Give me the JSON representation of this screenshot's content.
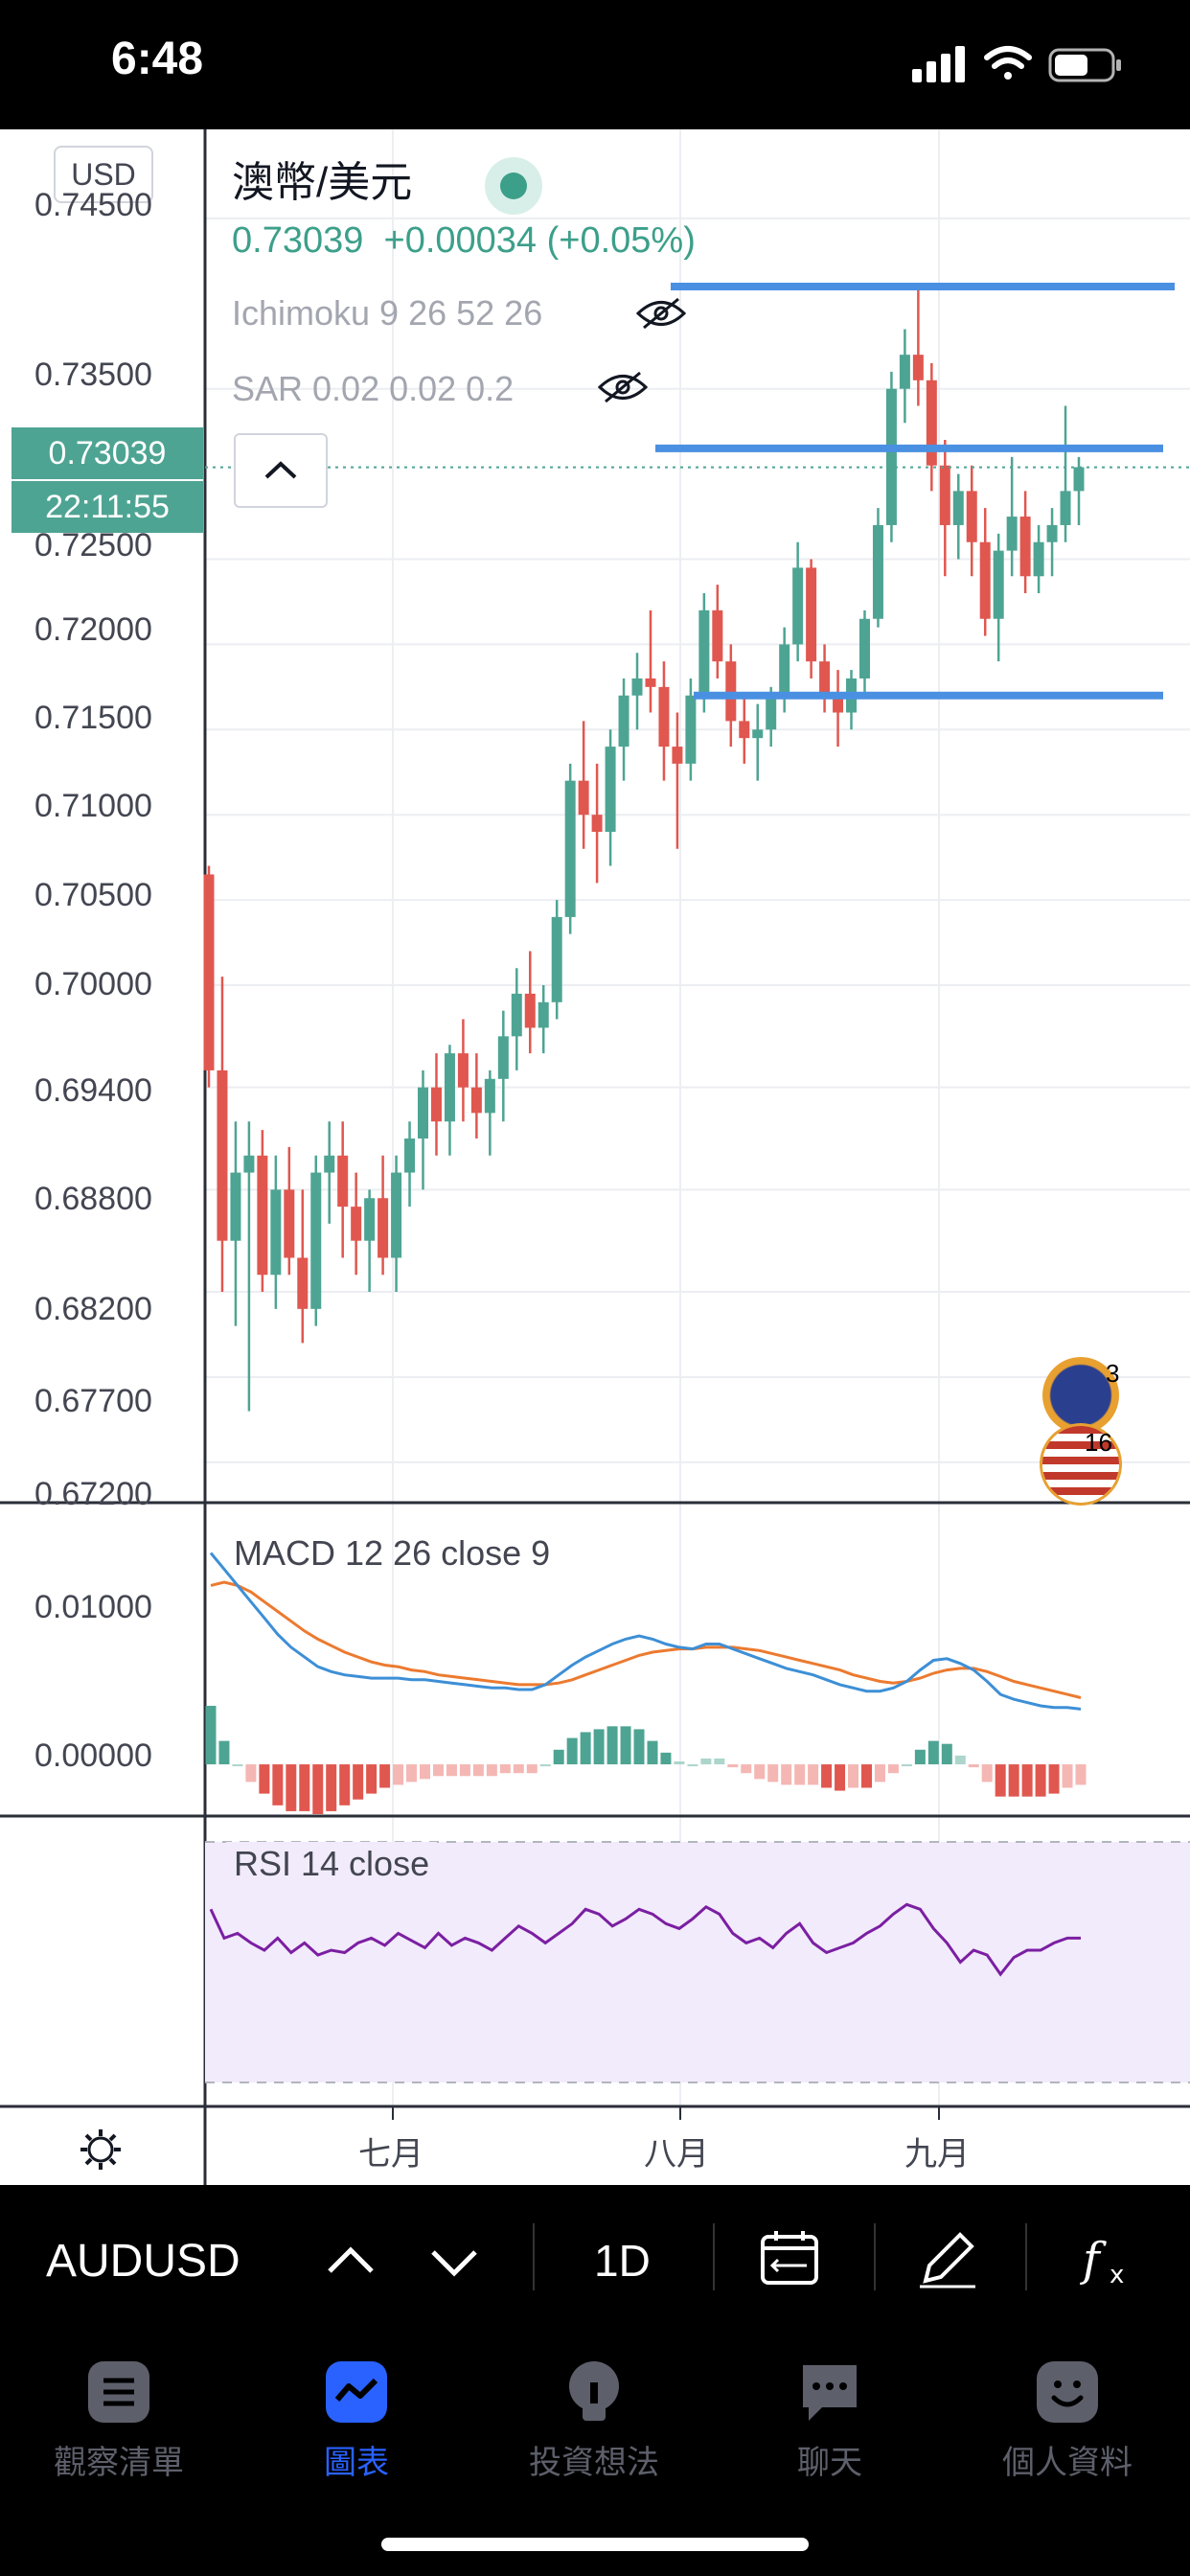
{
  "status_bar": {
    "time": "6:48"
  },
  "legend": {
    "currency_badge": "USD",
    "symbol_title": "澳幣/美元",
    "last_price": "0.73039",
    "change": "+0.00034 (+0.05%)",
    "indicator_ichimoku": "Ichimoku 9 26 52 26",
    "indicator_sar": "SAR 0.02 0.02 0.2"
  },
  "price_axis": {
    "labels": [
      "0.74500",
      "0.73500",
      "0.72500",
      "0.72000",
      "0.71500",
      "0.71000",
      "0.70500",
      "0.70000",
      "0.69400",
      "0.68800",
      "0.68200",
      "0.67700",
      "0.67200"
    ],
    "current_price_tag": "0.73039",
    "countdown_tag": "22:11:55"
  },
  "macd": {
    "title": "MACD 12 26 close 9",
    "axis_labels": [
      "0.01000",
      "0.00000"
    ]
  },
  "rsi": {
    "title": "RSI 14 close"
  },
  "time_axis": {
    "months": [
      "七月",
      "八月",
      "九月"
    ]
  },
  "event_flags": [
    {
      "country": "AU",
      "count": "3"
    },
    {
      "country": "US",
      "count": "16"
    }
  ],
  "toolbar": {
    "symbol": "AUDUSD",
    "interval": "1D"
  },
  "tabs": [
    {
      "label": "觀察清單",
      "icon": "list-icon",
      "active": false
    },
    {
      "label": "圖表",
      "icon": "chart-icon",
      "active": true
    },
    {
      "label": "投資想法",
      "icon": "lightbulb-icon",
      "active": false
    },
    {
      "label": "聊天",
      "icon": "chat-icon",
      "active": false
    },
    {
      "label": "個人資料",
      "icon": "profile-icon",
      "active": false
    }
  ],
  "colors": {
    "up": "#4ea493",
    "down": "#e0574f",
    "horizontal_lines": "#4a90e2",
    "macd": "#3d8fd6",
    "signal": "#ec7a2f",
    "rsi": "#7b1fa2",
    "active_tab": "#2962ff"
  },
  "chart_data": [
    {
      "type": "candlestick",
      "symbol": "AUDUSD",
      "interval": "1D",
      "ylim": [
        0.672,
        0.745
      ],
      "x_tick_labels": [
        "七月",
        "八月",
        "九月"
      ],
      "candles": [
        [
          0.7065,
          0.707,
          0.694,
          0.695
        ],
        [
          0.695,
          0.7005,
          0.682,
          0.685
        ],
        [
          0.685,
          0.692,
          0.68,
          0.689
        ],
        [
          0.689,
          0.692,
          0.675,
          0.69
        ],
        [
          0.69,
          0.6915,
          0.682,
          0.683
        ],
        [
          0.683,
          0.69,
          0.681,
          0.688
        ],
        [
          0.688,
          0.6905,
          0.683,
          0.684
        ],
        [
          0.684,
          0.688,
          0.679,
          0.681
        ],
        [
          0.681,
          0.69,
          0.68,
          0.689
        ],
        [
          0.689,
          0.692,
          0.686,
          0.69
        ],
        [
          0.69,
          0.692,
          0.684,
          0.687
        ],
        [
          0.687,
          0.689,
          0.683,
          0.685
        ],
        [
          0.685,
          0.688,
          0.682,
          0.6875
        ],
        [
          0.6875,
          0.69,
          0.683,
          0.684
        ],
        [
          0.684,
          0.69,
          0.682,
          0.689
        ],
        [
          0.689,
          0.692,
          0.687,
          0.691
        ],
        [
          0.691,
          0.695,
          0.688,
          0.694
        ],
        [
          0.694,
          0.696,
          0.69,
          0.692
        ],
        [
          0.692,
          0.6965,
          0.69,
          0.696
        ],
        [
          0.696,
          0.698,
          0.692,
          0.694
        ],
        [
          0.694,
          0.696,
          0.691,
          0.6925
        ],
        [
          0.6925,
          0.695,
          0.69,
          0.6945
        ],
        [
          0.6945,
          0.6985,
          0.692,
          0.697
        ],
        [
          0.697,
          0.701,
          0.695,
          0.6995
        ],
        [
          0.6995,
          0.702,
          0.696,
          0.6975
        ],
        [
          0.6975,
          0.7,
          0.696,
          0.699
        ],
        [
          0.699,
          0.705,
          0.698,
          0.704
        ],
        [
          0.704,
          0.713,
          0.703,
          0.712
        ],
        [
          0.712,
          0.7155,
          0.708,
          0.71
        ],
        [
          0.71,
          0.713,
          0.706,
          0.709
        ],
        [
          0.709,
          0.715,
          0.707,
          0.714
        ],
        [
          0.714,
          0.718,
          0.712,
          0.717
        ],
        [
          0.717,
          0.7195,
          0.715,
          0.718
        ],
        [
          0.718,
          0.722,
          0.716,
          0.7175
        ],
        [
          0.7175,
          0.719,
          0.712,
          0.714
        ],
        [
          0.714,
          0.716,
          0.708,
          0.713
        ],
        [
          0.713,
          0.718,
          0.712,
          0.717
        ],
        [
          0.717,
          0.723,
          0.716,
          0.722
        ],
        [
          0.722,
          0.7235,
          0.718,
          0.719
        ],
        [
          0.719,
          0.72,
          0.714,
          0.7155
        ],
        [
          0.7155,
          0.717,
          0.713,
          0.7145
        ],
        [
          0.7145,
          0.7165,
          0.712,
          0.715
        ],
        [
          0.715,
          0.7175,
          0.714,
          0.717
        ],
        [
          0.717,
          0.721,
          0.716,
          0.72
        ],
        [
          0.72,
          0.726,
          0.719,
          0.7245
        ],
        [
          0.7245,
          0.725,
          0.718,
          0.719
        ],
        [
          0.719,
          0.72,
          0.716,
          0.717
        ],
        [
          0.717,
          0.7185,
          0.714,
          0.716
        ],
        [
          0.716,
          0.7185,
          0.715,
          0.718
        ],
        [
          0.718,
          0.722,
          0.717,
          0.7215
        ],
        [
          0.7215,
          0.728,
          0.721,
          0.727
        ],
        [
          0.727,
          0.736,
          0.726,
          0.735
        ],
        [
          0.735,
          0.7385,
          0.733,
          0.737
        ],
        [
          0.737,
          0.741,
          0.734,
          0.7355
        ],
        [
          0.7355,
          0.7365,
          0.729,
          0.7305
        ],
        [
          0.7305,
          0.732,
          0.724,
          0.727
        ],
        [
          0.727,
          0.73,
          0.725,
          0.729
        ],
        [
          0.729,
          0.7305,
          0.724,
          0.726
        ],
        [
          0.726,
          0.728,
          0.7205,
          0.7215
        ],
        [
          0.7215,
          0.7265,
          0.719,
          0.7255
        ],
        [
          0.7255,
          0.731,
          0.724,
          0.7275
        ],
        [
          0.7275,
          0.729,
          0.723,
          0.724
        ],
        [
          0.724,
          0.727,
          0.723,
          0.726
        ],
        [
          0.726,
          0.728,
          0.724,
          0.727
        ],
        [
          0.727,
          0.734,
          0.726,
          0.729
        ],
        [
          0.729,
          0.731,
          0.727,
          0.7304
        ]
      ],
      "horizontal_lines": [
        0.741,
        0.7315,
        0.717
      ],
      "current_price": 0.73039
    },
    {
      "type": "line",
      "title": "MACD 12 26 close 9",
      "ylim": [
        -0.002,
        0.0145
      ],
      "series": [
        {
          "values": [
            0.013,
            0.012,
            0.011,
            0.01,
            0.009,
            0.008,
            0.0072,
            0.0066,
            0.006,
            0.0057,
            0.0055,
            0.0054,
            0.0053,
            0.0053,
            0.0053,
            0.0052,
            0.0052,
            0.0051,
            0.005,
            0.0049,
            0.0048,
            0.0047,
            0.0047,
            0.0046,
            0.0046,
            0.0049,
            0.0055,
            0.0061,
            0.0066,
            0.007,
            0.0074,
            0.0077,
            0.0079,
            0.0077,
            0.0074,
            0.0072,
            0.0071,
            0.0074,
            0.0074,
            0.0071,
            0.0068,
            0.0065,
            0.0062,
            0.0059,
            0.0057,
            0.0055,
            0.0052,
            0.0049,
            0.0047,
            0.0045,
            0.0045,
            0.0047,
            0.0051,
            0.0058,
            0.0064,
            0.0065,
            0.0062,
            0.0058,
            0.0051,
            0.0043,
            0.004,
            0.0038,
            0.0036,
            0.0035,
            0.0035,
            0.0034
          ]
        },
        {
          "values": [
            0.011,
            0.0112,
            0.011,
            0.0106,
            0.01,
            0.0094,
            0.0088,
            0.0082,
            0.0077,
            0.0073,
            0.0069,
            0.0066,
            0.0063,
            0.0061,
            0.006,
            0.0058,
            0.0057,
            0.0055,
            0.0054,
            0.0053,
            0.0052,
            0.0051,
            0.005,
            0.0049,
            0.0049,
            0.0049,
            0.005,
            0.0052,
            0.0055,
            0.0058,
            0.0061,
            0.0064,
            0.0067,
            0.0069,
            0.007,
            0.0071,
            0.0071,
            0.0072,
            0.0072,
            0.0072,
            0.0071,
            0.007,
            0.0068,
            0.0066,
            0.0064,
            0.0062,
            0.006,
            0.0058,
            0.0055,
            0.0053,
            0.0051,
            0.005,
            0.0051,
            0.0053,
            0.0056,
            0.0058,
            0.0059,
            0.0059,
            0.0057,
            0.0054,
            0.0051,
            0.0049,
            0.0047,
            0.0045,
            0.0043,
            0.0041
          ]
        }
      ]
    },
    {
      "type": "line",
      "title": "RSI 14 close",
      "ylim": [
        0,
        100
      ],
      "series": [
        {
          "values": [
            72,
            60,
            62,
            58,
            55,
            60,
            54,
            58,
            53,
            55,
            54,
            58,
            60,
            57,
            62,
            59,
            56,
            62,
            57,
            60,
            58,
            55,
            60,
            65,
            62,
            58,
            62,
            66,
            72,
            70,
            65,
            68,
            72,
            70,
            66,
            64,
            68,
            73,
            70,
            62,
            58,
            60,
            56,
            62,
            66,
            58,
            54,
            56,
            58,
            62,
            65,
            70,
            74,
            72,
            64,
            58,
            50,
            55,
            53,
            45,
            52,
            55,
            55,
            58,
            60,
            60
          ]
        }
      ]
    }
  ]
}
